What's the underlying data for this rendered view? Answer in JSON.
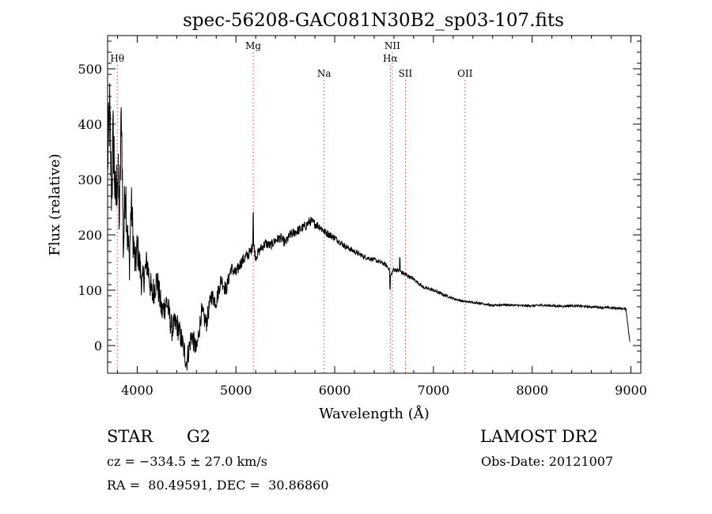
{
  "chart_data": {
    "type": "line",
    "title": "spec-56208-GAC081N30B2_sp03-107.fits",
    "xlabel": "Wavelength (Å)",
    "ylabel": "Flux (relative)",
    "xlim": [
      3700,
      9100
    ],
    "ylim": [
      -50,
      560
    ],
    "xticks": [
      4000,
      5000,
      6000,
      7000,
      8000,
      9000
    ],
    "yticks": [
      0,
      100,
      200,
      300,
      400,
      500
    ],
    "grid": false,
    "lines": [
      {
        "label": "Hθ",
        "x": 3798
      },
      {
        "label": "Mg",
        "x": 5175
      },
      {
        "label": "Na",
        "x": 5893
      },
      {
        "label": "NII",
        "x": 6583
      },
      {
        "label": "Hα",
        "x": 6563
      },
      {
        "label": "SII",
        "x": 6716
      },
      {
        "label": "OII",
        "x": 7320
      }
    ],
    "series": [
      {
        "x": [
          3700,
          3720,
          3740,
          3760,
          3780,
          3800,
          3820,
          3840,
          3860,
          3880,
          3900,
          3920,
          3940,
          3960,
          3980,
          4000,
          4050,
          4100,
          4150,
          4200,
          4250,
          4300,
          4350,
          4400,
          4450,
          4500,
          4550,
          4600,
          4650,
          4700,
          4750,
          4800,
          4850,
          4900,
          4950,
          5000,
          5050,
          5100,
          5150,
          5175,
          5200,
          5250,
          5300,
          5350,
          5400,
          5450,
          5500,
          5550,
          5600,
          5650,
          5700,
          5750,
          5800,
          5850,
          5900,
          5950,
          6000,
          6100,
          6200,
          6300,
          6400,
          6500,
          6550,
          6563,
          6600,
          6650,
          6700,
          6800,
          6900,
          7000,
          7100,
          7200,
          7300,
          7400,
          7500,
          7600,
          7700,
          7800,
          7900,
          8000,
          8100,
          8200,
          8300,
          8400,
          8500,
          8600,
          8700,
          8800,
          8900,
          8950,
          8990
        ],
        "y": [
          330,
          420,
          280,
          380,
          250,
          320,
          230,
          430,
          170,
          300,
          200,
          150,
          260,
          190,
          140,
          180,
          110,
          150,
          90,
          120,
          60,
          80,
          30,
          40,
          10,
          -30,
          20,
          -10,
          60,
          40,
          90,
          80,
          120,
          100,
          140,
          130,
          150,
          160,
          170,
          185,
          160,
          175,
          185,
          180,
          190,
          195,
          185,
          200,
          205,
          210,
          215,
          225,
          220,
          215,
          205,
          200,
          195,
          180,
          170,
          160,
          155,
          148,
          140,
          125,
          138,
          135,
          130,
          120,
          105,
          100,
          92,
          85,
          80,
          78,
          76,
          72,
          74,
          73,
          72,
          72,
          73,
          72,
          71,
          72,
          71,
          70,
          69,
          68,
          67,
          66,
          5
        ],
        "jitter": [
          60,
          80,
          70,
          90,
          60,
          70,
          60,
          50,
          50,
          55,
          45,
          45,
          40,
          40,
          35,
          35,
          30,
          30,
          28,
          28,
          26,
          26,
          24,
          24,
          22,
          22,
          20,
          20,
          18,
          18,
          16,
          16,
          14,
          14,
          12,
          12,
          11,
          11,
          10,
          10,
          9,
          9,
          9,
          9,
          9,
          9,
          9,
          9,
          9,
          9,
          9,
          9,
          8,
          8,
          7,
          7,
          6,
          5,
          5,
          4,
          4,
          4,
          4,
          4,
          4,
          4,
          4,
          3,
          3,
          3,
          3,
          2,
          2,
          2,
          2,
          2,
          2,
          2,
          2,
          2,
          2,
          2,
          2,
          2,
          2,
          2,
          2,
          2,
          2,
          2,
          0
        ]
      }
    ]
  },
  "info": {
    "object_class": "STAR",
    "subclass": "G2",
    "survey": "LAMOST DR2",
    "cz": "cz = −334.5 ± 27.0 km/s",
    "obs_date": "Obs-Date: 20121007",
    "radec": "RA =  80.49591, DEC =  30.86860"
  }
}
